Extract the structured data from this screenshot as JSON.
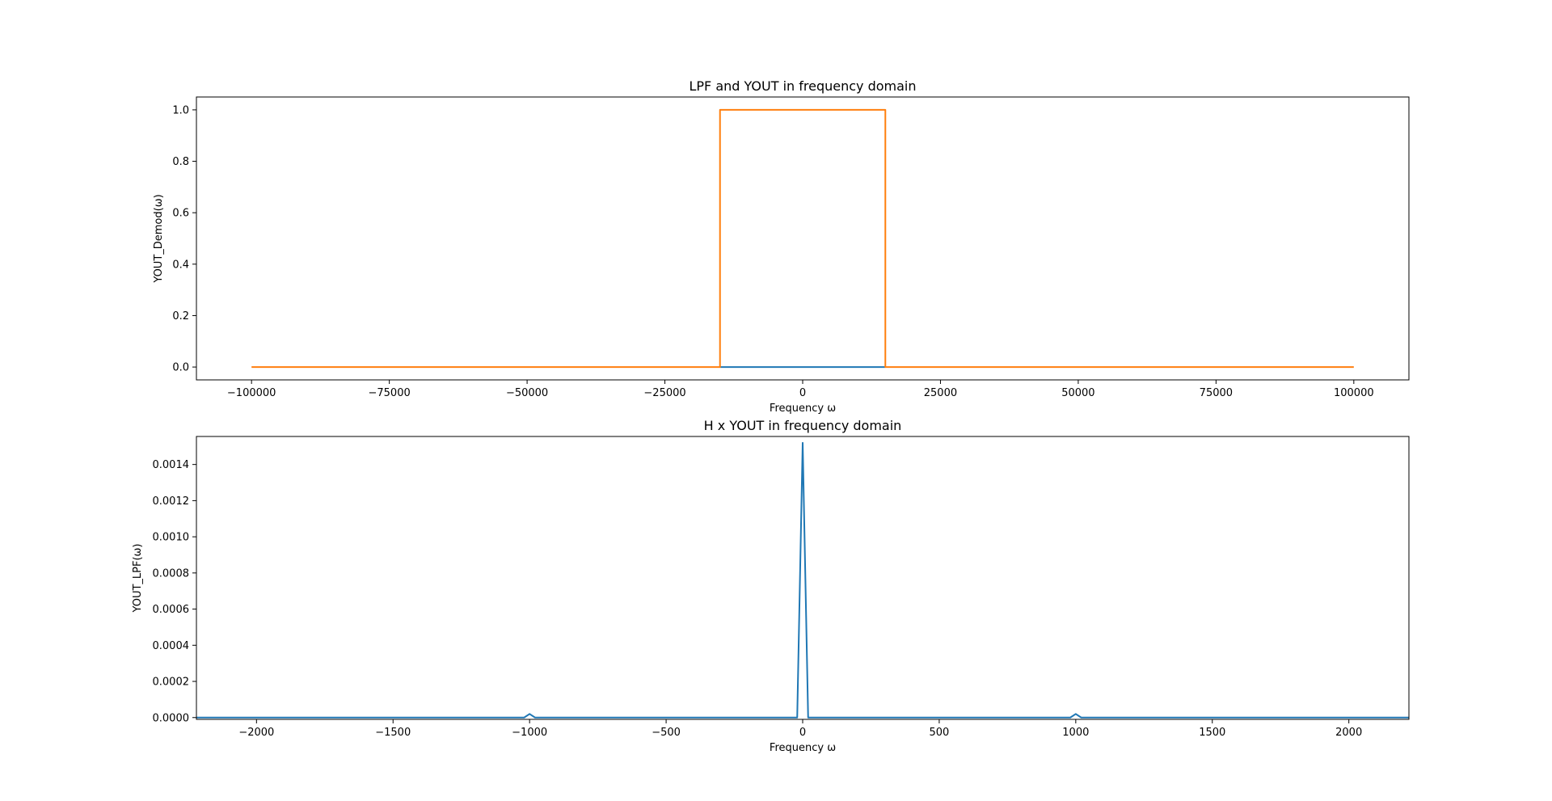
{
  "chart_data": [
    {
      "type": "line",
      "title": "LPF and YOUT in frequency domain",
      "xlabel": "Frequency ω",
      "ylabel": "YOUT_Demod(ω)",
      "xlim": [
        -110000,
        110000
      ],
      "ylim": [
        -0.05,
        1.05
      ],
      "xticks": [
        -100000,
        -75000,
        -50000,
        -25000,
        0,
        25000,
        50000,
        75000,
        100000
      ],
      "xtick_labels": [
        "−100000",
        "−75000",
        "−50000",
        "−25000",
        "0",
        "25000",
        "50000",
        "75000",
        "100000"
      ],
      "yticks": [
        0.0,
        0.2,
        0.4,
        0.6,
        0.8,
        1.0
      ],
      "ytick_labels": [
        "0.0",
        "0.2",
        "0.4",
        "0.6",
        "0.8",
        "1.0"
      ],
      "grid": false,
      "series": [
        {
          "color": "#1f77b4",
          "x": [
            -15000,
            15000
          ],
          "y": [
            0,
            0
          ]
        },
        {
          "color": "#ff7f0e",
          "x": [
            -100000,
            -15000,
            -15000,
            15000,
            15000,
            100000
          ],
          "y": [
            0,
            0,
            1,
            1,
            0,
            0
          ]
        }
      ]
    },
    {
      "type": "line",
      "title": "H x YOUT in frequency domain",
      "xlabel": "Frequency ω",
      "ylabel": "YOUT_LPF(ω)",
      "xlim": [
        -2220,
        2220
      ],
      "ylim": [
        -1e-05,
        0.001555
      ],
      "xticks": [
        -2000,
        -1500,
        -1000,
        -500,
        0,
        500,
        1000,
        1500,
        2000
      ],
      "xtick_labels": [
        "−2000",
        "−1500",
        "−1000",
        "−500",
        "0",
        "500",
        "1000",
        "1500",
        "2000"
      ],
      "yticks": [
        0.0,
        0.0002,
        0.0004,
        0.0006,
        0.0008,
        0.001,
        0.0012,
        0.0014
      ],
      "ytick_labels": [
        "0.0000",
        "0.0002",
        "0.0004",
        "0.0006",
        "0.0008",
        "0.0010",
        "0.0012",
        "0.0014"
      ],
      "grid": false,
      "series": [
        {
          "color": "#1f77b4",
          "x": [
            -2220,
            -1020,
            -1000,
            -980,
            -20,
            0,
            20,
            980,
            1000,
            1020,
            2220
          ],
          "y": [
            0,
            0,
            2e-05,
            0,
            0,
            0.00152,
            0,
            0,
            2e-05,
            0,
            0
          ]
        }
      ]
    }
  ]
}
